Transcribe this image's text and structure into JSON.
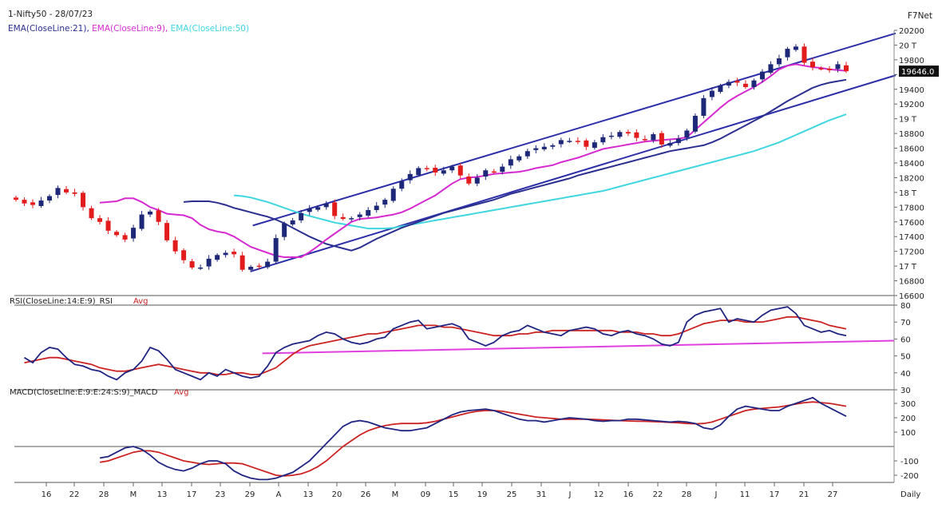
{
  "header": {
    "title": "1-Nifty50 - 28/07/23",
    "brand": "F7Net",
    "ema21_label": "EMA(CloseLine:21),",
    "ema9_label": "EMA(CloseLine:9),",
    "ema50_label": "EMA(CloseLine:50)"
  },
  "colors": {
    "ema21": "#2b2f8f",
    "ema9": "#d62ad0",
    "ema50": "#3fd6e0",
    "channel": "#2c2fa8",
    "rsi": "#1f2580",
    "rsi_avg": "#cc2222",
    "up_candle": "#1e2878",
    "down_candle": "#e21c1c",
    "trend": "#e040e0"
  },
  "chart_data": [
    {
      "type": "candlestick",
      "title": "1-Nifty50 - 28/07/23",
      "series_names": [
        "EMA(CloseLine:21)",
        "EMA(CloseLine:9)",
        "EMA(CloseLine:50)"
      ],
      "y_ticks": [
        "20200",
        "20 T",
        "19800",
        "19646.0",
        "19400",
        "19200",
        "19 T",
        "18800",
        "18600",
        "18400",
        "18200",
        "18 T",
        "17800",
        "17600",
        "17400",
        "17200",
        "17 T",
        "16800",
        "16600"
      ],
      "ylim": [
        16600,
        20200
      ],
      "last_price": "19646.0",
      "close": [
        17900,
        17850,
        17830,
        17890,
        17950,
        18060,
        18000,
        17980,
        17800,
        17650,
        17600,
        17480,
        17420,
        17360,
        17520,
        17700,
        17740,
        17600,
        17350,
        17200,
        17080,
        16980,
        16980,
        17100,
        17150,
        17180,
        17160,
        16950,
        16990,
        17000,
        17060,
        17380,
        17580,
        17620,
        17720,
        17780,
        17800,
        17850,
        17680,
        17640,
        17650,
        17700,
        17760,
        17820,
        17900,
        18050,
        18150,
        18250,
        18330,
        18320,
        18270,
        18300,
        18350,
        18230,
        18120,
        18200,
        18300,
        18280,
        18350,
        18450,
        18490,
        18560,
        18600,
        18620,
        18640,
        18710,
        18700,
        18690,
        18620,
        18680,
        18750,
        18770,
        18820,
        18800,
        18740,
        18710,
        18790,
        18650,
        18670,
        18730,
        18840,
        19040,
        19280,
        19380,
        19450,
        19500,
        19490,
        19430,
        19520,
        19640,
        19740,
        19820,
        19950,
        19980,
        19760,
        19700,
        19680,
        19660,
        19740,
        19646
      ],
      "ema9": [
        17860,
        17870,
        17880,
        17920,
        17920,
        17870,
        17800,
        17760,
        17710,
        17700,
        17690,
        17650,
        17560,
        17500,
        17470,
        17450,
        17400,
        17330,
        17260,
        17220,
        17180,
        17140,
        17120,
        17120,
        17120,
        17190,
        17270,
        17360,
        17440,
        17520,
        17600,
        17640,
        17650,
        17660,
        17680,
        17700,
        17730,
        17780,
        17840,
        17900,
        17960,
        18040,
        18120,
        18180,
        18200,
        18210,
        18230,
        18250,
        18260,
        18270,
        18280,
        18300,
        18330,
        18350,
        18370,
        18410,
        18440,
        18470,
        18510,
        18550,
        18590,
        18610,
        18630,
        18650,
        18670,
        18690,
        18700,
        18710,
        18720,
        18730,
        18750,
        18850,
        18950,
        19050,
        19150,
        19240,
        19310,
        19370,
        19430,
        19500,
        19580,
        19670,
        19720,
        19740,
        19720,
        19700,
        19690,
        19670,
        19660,
        19650
      ],
      "ema21": [
        17870,
        17880,
        17880,
        17880,
        17860,
        17830,
        17790,
        17760,
        17730,
        17700,
        17670,
        17630,
        17580,
        17520,
        17460,
        17400,
        17350,
        17300,
        17270,
        17240,
        17210,
        17250,
        17310,
        17370,
        17420,
        17470,
        17520,
        17560,
        17600,
        17640,
        17680,
        17720,
        17750,
        17780,
        17810,
        17840,
        17870,
        17900,
        17940,
        17980,
        18010,
        18040,
        18070,
        18100,
        18130,
        18160,
        18190,
        18230,
        18260,
        18290,
        18320,
        18350,
        18380,
        18410,
        18440,
        18470,
        18500,
        18530,
        18560,
        18580,
        18600,
        18620,
        18640,
        18680,
        18730,
        18790,
        18850,
        18910,
        18970,
        19030,
        19100,
        19170,
        19240,
        19300,
        19360,
        19420,
        19460,
        19490,
        19510,
        19530
      ],
      "ema50": [
        17960,
        17950,
        17930,
        17900,
        17870,
        17830,
        17790,
        17750,
        17710,
        17680,
        17650,
        17620,
        17590,
        17570,
        17550,
        17530,
        17510,
        17510,
        17510,
        17520,
        17540,
        17560,
        17580,
        17600,
        17620,
        17640,
        17660,
        17680,
        17700,
        17720,
        17740,
        17760,
        17780,
        17800,
        17820,
        17840,
        17860,
        17880,
        17900,
        17920,
        17940,
        17960,
        17980,
        18000,
        18020,
        18050,
        18080,
        18110,
        18140,
        18170,
        18200,
        18230,
        18260,
        18290,
        18320,
        18350,
        18380,
        18410,
        18440,
        18470,
        18500,
        18530,
        18560,
        18600,
        18640,
        18680,
        18730,
        18780,
        18830,
        18880,
        18930,
        18980,
        19020,
        19060
      ]
    },
    {
      "type": "line",
      "title": "RSI(CloseLine:14:E:9)_RSI",
      "series": [
        {
          "name": "RSI",
          "values": [
            49,
            46,
            52,
            55,
            54,
            49,
            45,
            44,
            42,
            41,
            38,
            36,
            40,
            42,
            47,
            55,
            53,
            48,
            42,
            40,
            38,
            36,
            40,
            38,
            42,
            40,
            38,
            37,
            38,
            44,
            52,
            55,
            57,
            58,
            59,
            62,
            64,
            63,
            60,
            58,
            57,
            58,
            60,
            61,
            66,
            68,
            70,
            71,
            66,
            67,
            68,
            69,
            67,
            60,
            58,
            56,
            58,
            62,
            64,
            65,
            68,
            66,
            64,
            63,
            62,
            65,
            66,
            67,
            66,
            63,
            62,
            64,
            65,
            63,
            62,
            60,
            57,
            56,
            58,
            70,
            74,
            76,
            77,
            78,
            70,
            72,
            71,
            70,
            74,
            77,
            78,
            79,
            75,
            68,
            66,
            64,
            65,
            63,
            62
          ]
        },
        {
          "name": "Avg",
          "values": [
            46,
            47,
            48,
            49,
            49,
            48,
            47,
            46,
            45,
            43,
            42,
            41,
            41,
            42,
            43,
            44,
            45,
            44,
            43,
            42,
            41,
            40,
            40,
            39,
            39,
            40,
            40,
            39,
            39,
            41,
            43,
            47,
            51,
            54,
            56,
            57,
            58,
            59,
            60,
            61,
            62,
            63,
            63,
            64,
            65,
            66,
            67,
            68,
            68,
            68,
            67,
            67,
            66,
            65,
            64,
            63,
            62,
            62,
            62,
            63,
            63,
            64,
            64,
            65,
            65,
            65,
            65,
            65,
            65,
            65,
            65,
            64,
            64,
            64,
            63,
            63,
            62,
            62,
            63,
            65,
            67,
            69,
            70,
            71,
            71,
            71,
            70,
            70,
            70,
            71,
            72,
            73,
            73,
            72,
            71,
            70,
            68,
            67,
            66
          ]
        }
      ],
      "y_ticks": [
        "80",
        "70",
        "60",
        "50",
        "40",
        "30"
      ],
      "ylim": [
        30,
        80
      ]
    },
    {
      "type": "line",
      "title": "MACD(CloseLine:E:9:E:24:S:9)_MACD",
      "series": [
        {
          "name": "MACD",
          "values": [
            -80,
            -70,
            -40,
            -10,
            0,
            -20,
            -60,
            -110,
            -140,
            -160,
            -170,
            -150,
            -120,
            -100,
            -100,
            -120,
            -170,
            -200,
            -220,
            -230,
            -230,
            -220,
            -200,
            -180,
            -140,
            -100,
            -40,
            20,
            80,
            140,
            170,
            180,
            170,
            150,
            130,
            120,
            110,
            110,
            120,
            130,
            160,
            190,
            220,
            240,
            250,
            255,
            260,
            250,
            230,
            210,
            190,
            180,
            180,
            170,
            180,
            190,
            200,
            195,
            190,
            180,
            175,
            180,
            180,
            190,
            190,
            185,
            180,
            175,
            170,
            175,
            170,
            160,
            130,
            120,
            150,
            210,
            260,
            280,
            270,
            260,
            250,
            250,
            280,
            300,
            320,
            340,
            300,
            270,
            240,
            210
          ]
        },
        {
          "name": "Avg",
          "values": [
            -110,
            -100,
            -80,
            -60,
            -40,
            -30,
            -30,
            -40,
            -60,
            -80,
            -100,
            -110,
            -120,
            -125,
            -120,
            -115,
            -115,
            -120,
            -140,
            -160,
            -180,
            -200,
            -205,
            -200,
            -190,
            -170,
            -140,
            -100,
            -50,
            0,
            40,
            80,
            110,
            130,
            145,
            155,
            160,
            160,
            160,
            165,
            175,
            190,
            205,
            220,
            235,
            245,
            250,
            250,
            245,
            235,
            225,
            215,
            205,
            200,
            195,
            190,
            190,
            190,
            190,
            188,
            185,
            183,
            180,
            178,
            176,
            175,
            173,
            171,
            168,
            165,
            160,
            158,
            160,
            170,
            190,
            210,
            230,
            250,
            260,
            265,
            270,
            275,
            285,
            295,
            305,
            310,
            305,
            300,
            290,
            280
          ]
        }
      ],
      "y_ticks": [
        "300",
        "200",
        "100",
        "0",
        "-100",
        "-200"
      ],
      "ylim": [
        -250,
        350
      ]
    }
  ],
  "xaxis": {
    "labels": [
      "16",
      "22",
      "28",
      "M",
      "13",
      "17",
      "23",
      "29",
      "A",
      "13",
      "20",
      "26",
      "M",
      "09",
      "15",
      "19",
      "25",
      "31",
      "J",
      "12",
      "16",
      "22",
      "28",
      "J",
      "11",
      "17",
      "21",
      "27"
    ],
    "period": "Daily"
  },
  "rsi_panel": {
    "label": "RSI(CloseLine:14:E:9)_RSI",
    "avg": "Avg",
    "ticks": [
      "80",
      "70",
      "60",
      "50",
      "40",
      "30"
    ]
  },
  "macd_panel": {
    "label": "MACD(CloseLine:E:9:E:24:S:9)_MACD",
    "avg": "Avg",
    "ticks": [
      "300",
      "200",
      "100",
      "-100",
      "-200"
    ]
  }
}
